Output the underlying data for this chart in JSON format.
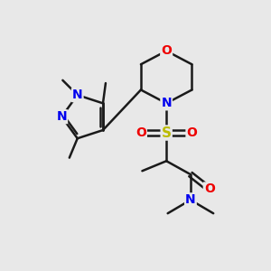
{
  "bg_color": "#e8e8e8",
  "atom_colors": {
    "C": "#1a1a1a",
    "N": "#0000ee",
    "O": "#ee0000",
    "S": "#bbbb00"
  },
  "bond_color": "#1a1a1a",
  "bond_width": 1.8,
  "font_size": 10,
  "methyl_font_size": 8.5
}
